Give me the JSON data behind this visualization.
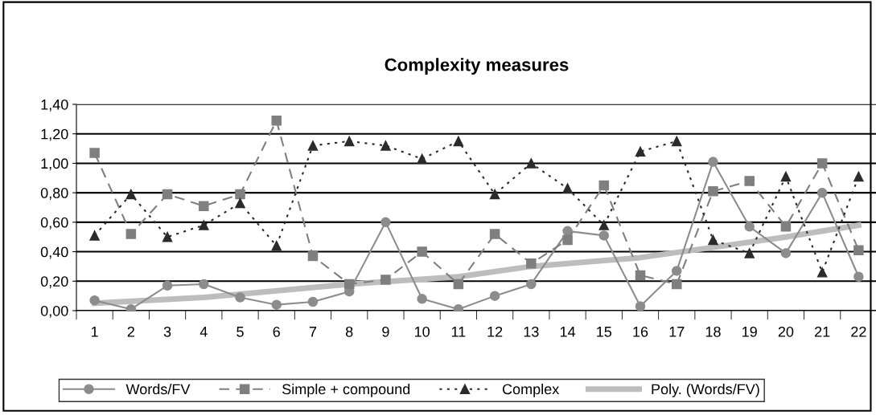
{
  "chart_data": {
    "type": "line",
    "title": "Complexity measures",
    "categories": [
      "1",
      "2",
      "3",
      "4",
      "5",
      "6",
      "7",
      "8",
      "9",
      "10",
      "11",
      "12",
      "13",
      "14",
      "15",
      "16",
      "17",
      "18",
      "19",
      "20",
      "21",
      "22"
    ],
    "series": [
      {
        "name": "Words/FV",
        "color": "#8c8c8c",
        "marker": "circle",
        "line_style": "solid",
        "values": [
          0.07,
          0.01,
          0.17,
          0.18,
          0.09,
          0.04,
          0.06,
          0.13,
          0.6,
          0.08,
          0.01,
          0.1,
          0.18,
          0.54,
          0.51,
          0.03,
          0.27,
          1.01,
          0.57,
          0.39,
          0.8,
          0.23
        ]
      },
      {
        "name": "Simple + compound",
        "color": "#7f7f7f",
        "marker": "square",
        "line_style": "dashed",
        "values": [
          1.07,
          0.52,
          0.79,
          0.71,
          0.79,
          1.29,
          0.37,
          0.18,
          0.21,
          0.4,
          0.18,
          0.52,
          0.32,
          0.48,
          0.85,
          0.24,
          0.18,
          0.81,
          0.88,
          0.57,
          1.0,
          0.41
        ]
      },
      {
        "name": "Complex",
        "color": "#2b2b2b",
        "marker": "triangle",
        "line_style": "dotted",
        "values": [
          0.51,
          0.79,
          0.5,
          0.58,
          0.73,
          0.44,
          1.12,
          1.15,
          1.12,
          1.03,
          1.15,
          0.79,
          1.0,
          0.83,
          0.58,
          1.08,
          1.15,
          0.48,
          0.39,
          0.91,
          0.26,
          0.91
        ]
      },
      {
        "name": "Poly. (Words/FV)",
        "color": "#bdbdbd",
        "marker": "none",
        "line_style": "solid",
        "x": [
          "1",
          "4",
          "8",
          "11",
          "13",
          "16",
          "18",
          "20",
          "22"
        ],
        "values": [
          0.05,
          0.09,
          0.18,
          0.23,
          0.3,
          0.36,
          0.43,
          0.5,
          0.58
        ]
      }
    ],
    "ylim": [
      0,
      1.4
    ],
    "yticks": [
      {
        "value": 0,
        "label": "0,00"
      },
      {
        "value": 0.2,
        "label": "0,20"
      },
      {
        "value": 0.4,
        "label": "0,40"
      },
      {
        "value": 0.6,
        "label": "0,60"
      },
      {
        "value": 0.8,
        "label": "0,80"
      },
      {
        "value": 1.0,
        "label": "1,00"
      },
      {
        "value": 1.2,
        "label": "1,20"
      },
      {
        "value": 1.4,
        "label": "1,40"
      }
    ],
    "grid": "y",
    "legend": "bottom"
  }
}
